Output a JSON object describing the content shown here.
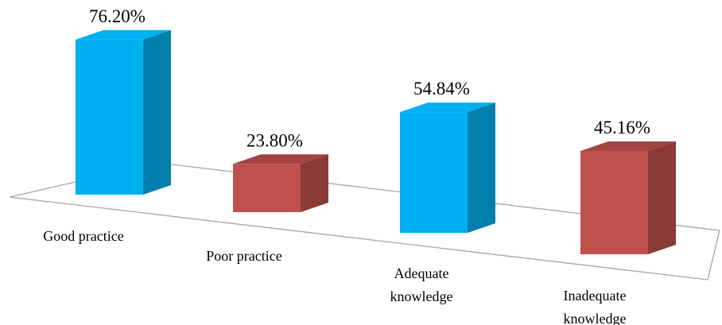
{
  "chart_data": {
    "type": "bar3d",
    "categories": [
      "Good practice",
      "Poor practice",
      "Adequate knowledge",
      "Inadequate knowledge"
    ],
    "values": [
      76.2,
      23.8,
      54.84,
      45.16
    ],
    "value_labels": [
      "76.20%",
      "23.80%",
      "54.84%",
      "45.16%"
    ],
    "colors": [
      "#00b0f0",
      "#c0504d",
      "#00b0f0",
      "#c0504d"
    ]
  }
}
